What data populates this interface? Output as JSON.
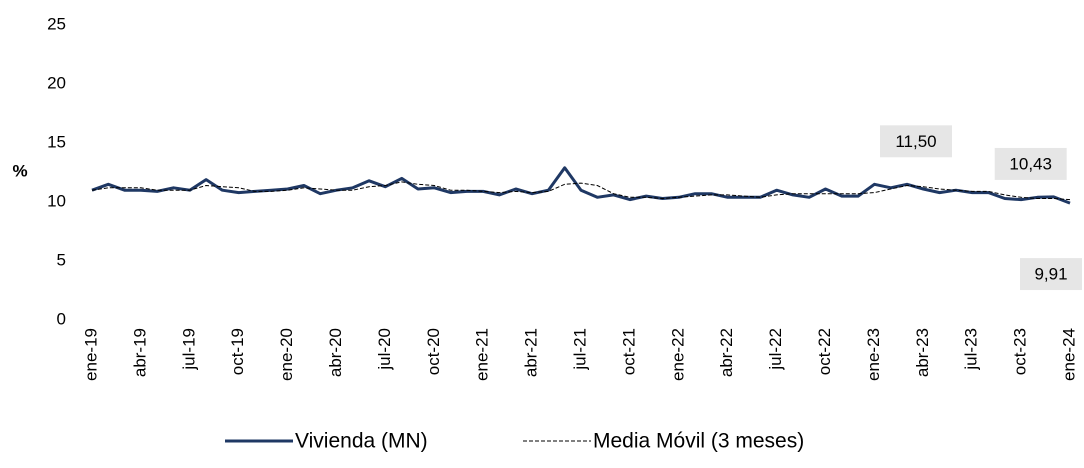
{
  "chart_data": {
    "type": "line",
    "y_label": "%",
    "categories": [
      "ene-19",
      null,
      null,
      "abr-19",
      null,
      null,
      "jul-19",
      null,
      null,
      "oct-19",
      null,
      null,
      "ene-20",
      null,
      null,
      "abr-20",
      null,
      null,
      "jul-20",
      null,
      null,
      "oct-20",
      null,
      null,
      "ene-21",
      null,
      null,
      "abr-21",
      null,
      null,
      "jul-21",
      null,
      null,
      "oct-21",
      null,
      null,
      "ene-22",
      null,
      null,
      "abr-22",
      null,
      null,
      "jul-22",
      null,
      null,
      "oct-22",
      null,
      null,
      "ene-23",
      null,
      null,
      "abr-23",
      null,
      null,
      "jul-23",
      null,
      null,
      "oct-23",
      null,
      null,
      "ene-24"
    ],
    "series": [
      {
        "name": "Vivienda (MN)",
        "color": "#1f3864",
        "style": "solid",
        "values": [
          11.0,
          11.5,
          11.0,
          11.0,
          10.9,
          11.2,
          11.0,
          11.9,
          11.0,
          10.8,
          10.9,
          11.0,
          11.1,
          11.4,
          10.7,
          11.0,
          11.2,
          11.8,
          11.3,
          12.0,
          11.1,
          11.2,
          10.8,
          10.9,
          10.9,
          10.6,
          11.1,
          10.7,
          11.0,
          12.9,
          11.0,
          10.4,
          10.6,
          10.2,
          10.5,
          10.3,
          10.4,
          10.7,
          10.7,
          10.4,
          10.4,
          10.4,
          11.0,
          10.6,
          10.4,
          11.1,
          10.5,
          10.5,
          11.5,
          11.2,
          11.5,
          11.1,
          10.8,
          11.0,
          10.8,
          10.8,
          10.3,
          10.2,
          10.4,
          10.43,
          9.91
        ],
        "value_labels": [
          null,
          null,
          null,
          null,
          null,
          null,
          null,
          null,
          null,
          null,
          null,
          null,
          null,
          null,
          null,
          null,
          null,
          null,
          null,
          null,
          null,
          null,
          null,
          null,
          null,
          null,
          null,
          null,
          null,
          null,
          null,
          null,
          null,
          null,
          null,
          null,
          null,
          null,
          null,
          null,
          null,
          null,
          null,
          null,
          null,
          null,
          null,
          null,
          null,
          null,
          "11,50",
          null,
          null,
          null,
          null,
          null,
          null,
          null,
          null,
          "10,43",
          "9,91"
        ]
      },
      {
        "name": "Media Móvil (3 meses)",
        "color": "#000000",
        "style": "dashed",
        "values": [
          11.0,
          11.2,
          11.2,
          11.2,
          11.0,
          11.0,
          11.0,
          11.4,
          11.3,
          11.2,
          10.9,
          10.9,
          11.0,
          11.2,
          11.1,
          11.0,
          11.0,
          11.3,
          11.4,
          11.7,
          11.5,
          11.4,
          11.0,
          11.0,
          10.9,
          10.8,
          10.9,
          10.8,
          10.9,
          11.5,
          11.6,
          11.4,
          10.7,
          10.4,
          10.4,
          10.3,
          10.4,
          10.5,
          10.6,
          10.6,
          10.5,
          10.4,
          10.6,
          10.7,
          10.7,
          10.7,
          10.7,
          10.7,
          10.8,
          11.1,
          11.4,
          11.3,
          11.1,
          11.0,
          10.9,
          10.9,
          10.6,
          10.4,
          10.3,
          10.3,
          10.2
        ]
      }
    ],
    "ylim": [
      0,
      25
    ],
    "yticks": [
      0,
      5,
      10,
      15,
      20,
      25
    ],
    "grid": false,
    "legend": "bottom"
  }
}
